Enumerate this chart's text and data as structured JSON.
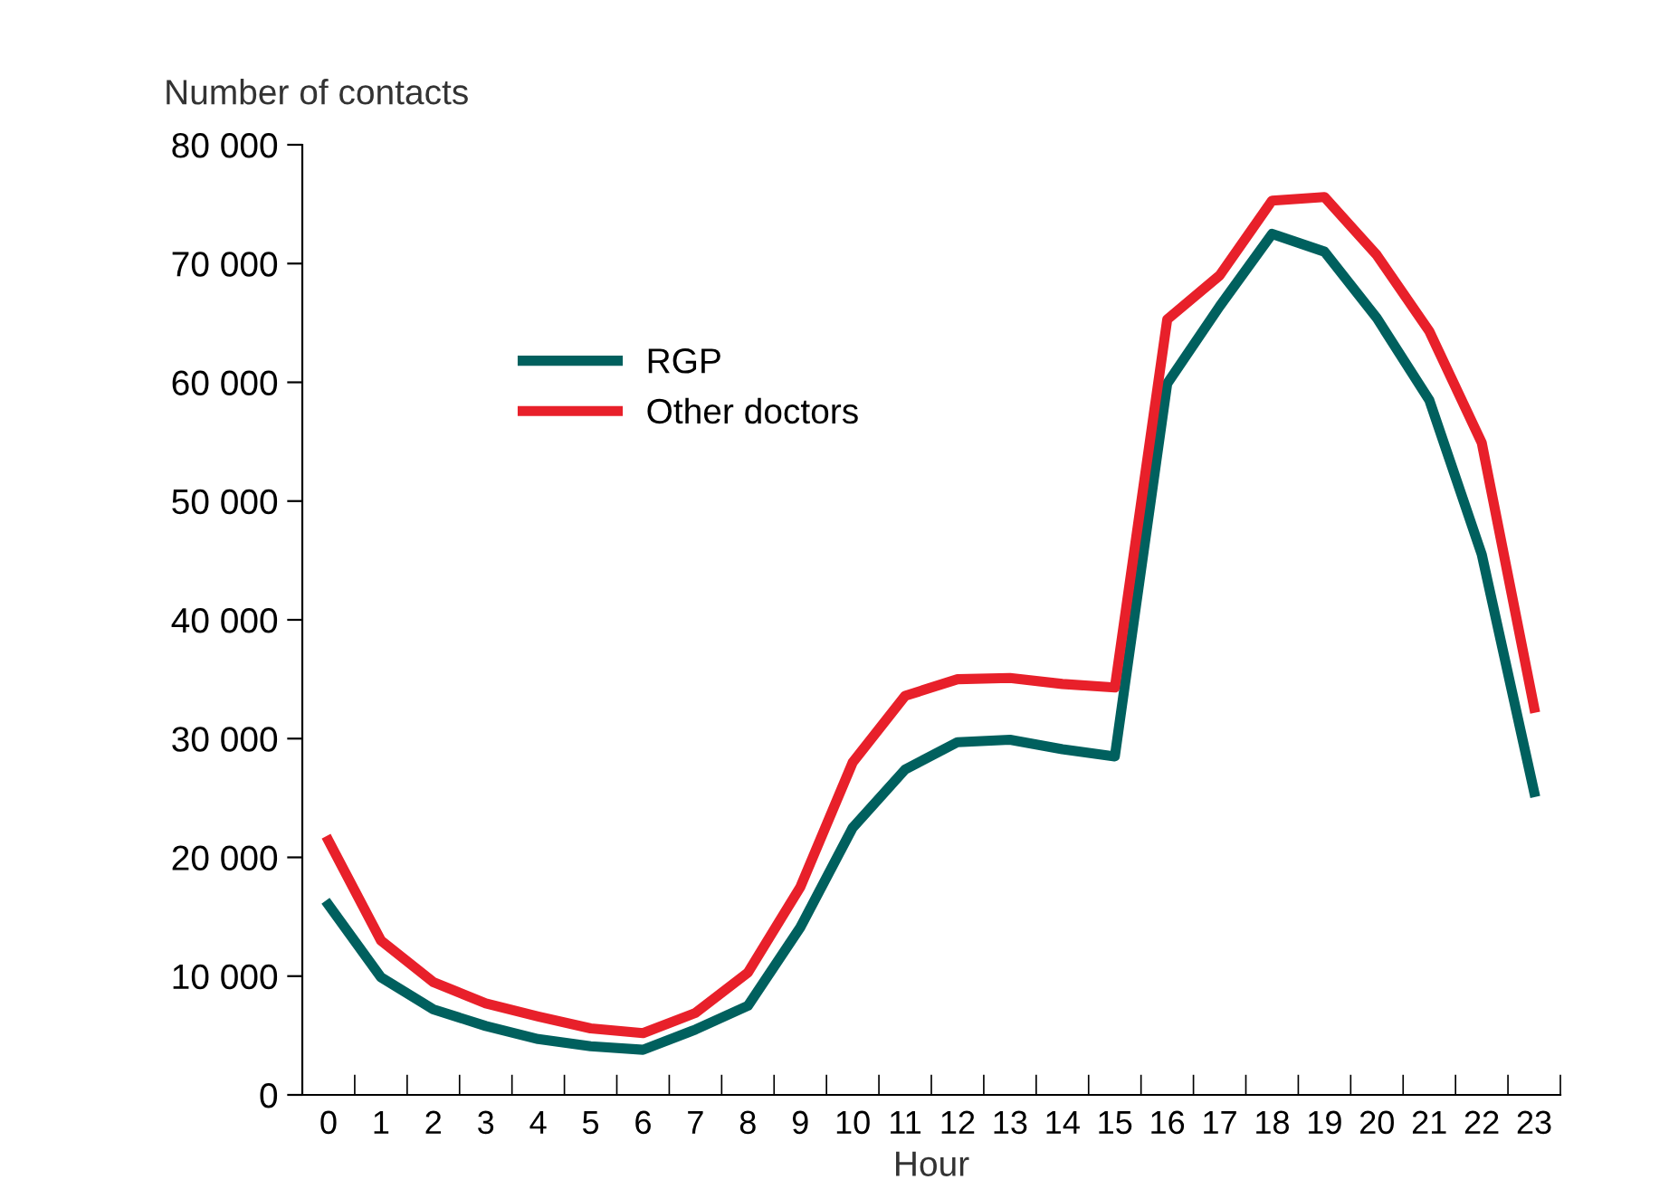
{
  "chart_data": {
    "type": "line",
    "ylabel": "Number of contacts",
    "xlabel": "Hour",
    "categories": [
      "0",
      "1",
      "2",
      "3",
      "4",
      "5",
      "6",
      "7",
      "8",
      "9",
      "10",
      "11",
      "12",
      "13",
      "14",
      "15",
      "16",
      "17",
      "18",
      "19",
      "20",
      "21",
      "22",
      "23"
    ],
    "series": [
      {
        "name": "RGP",
        "color": "#00605e",
        "values": [
          16000,
          9900,
          7200,
          5800,
          4700,
          4100,
          3800,
          5500,
          7500,
          14100,
          22500,
          27400,
          29700,
          29900,
          29100,
          28500,
          59900,
          66400,
          72500,
          71000,
          65400,
          58500,
          45500,
          25500
        ]
      },
      {
        "name": "Other doctors",
        "color": "#e8202a",
        "values": [
          21400,
          13000,
          9500,
          7700,
          6600,
          5600,
          5200,
          6900,
          10300,
          17500,
          28000,
          33600,
          35000,
          35100,
          34600,
          34300,
          65300,
          69000,
          75300,
          75600,
          70700,
          64300,
          54900,
          32600
        ]
      }
    ],
    "ylim": [
      0,
      80000
    ],
    "yticks": [
      0,
      {
        "value": 10000,
        "label": "10 000"
      },
      {
        "value": 20000,
        "label": "20 000"
      },
      {
        "value": 30000,
        "label": "30 000"
      },
      {
        "value": 40000,
        "label": "40 000"
      },
      {
        "value": 50000,
        "label": "50 000"
      },
      {
        "value": 60000,
        "label": "60 000"
      },
      {
        "value": 70000,
        "label": "70 000"
      },
      {
        "value": 80000,
        "label": "80 000"
      }
    ],
    "grid": false,
    "legend": "top left",
    "marker": "none",
    "line_style": "solid"
  }
}
